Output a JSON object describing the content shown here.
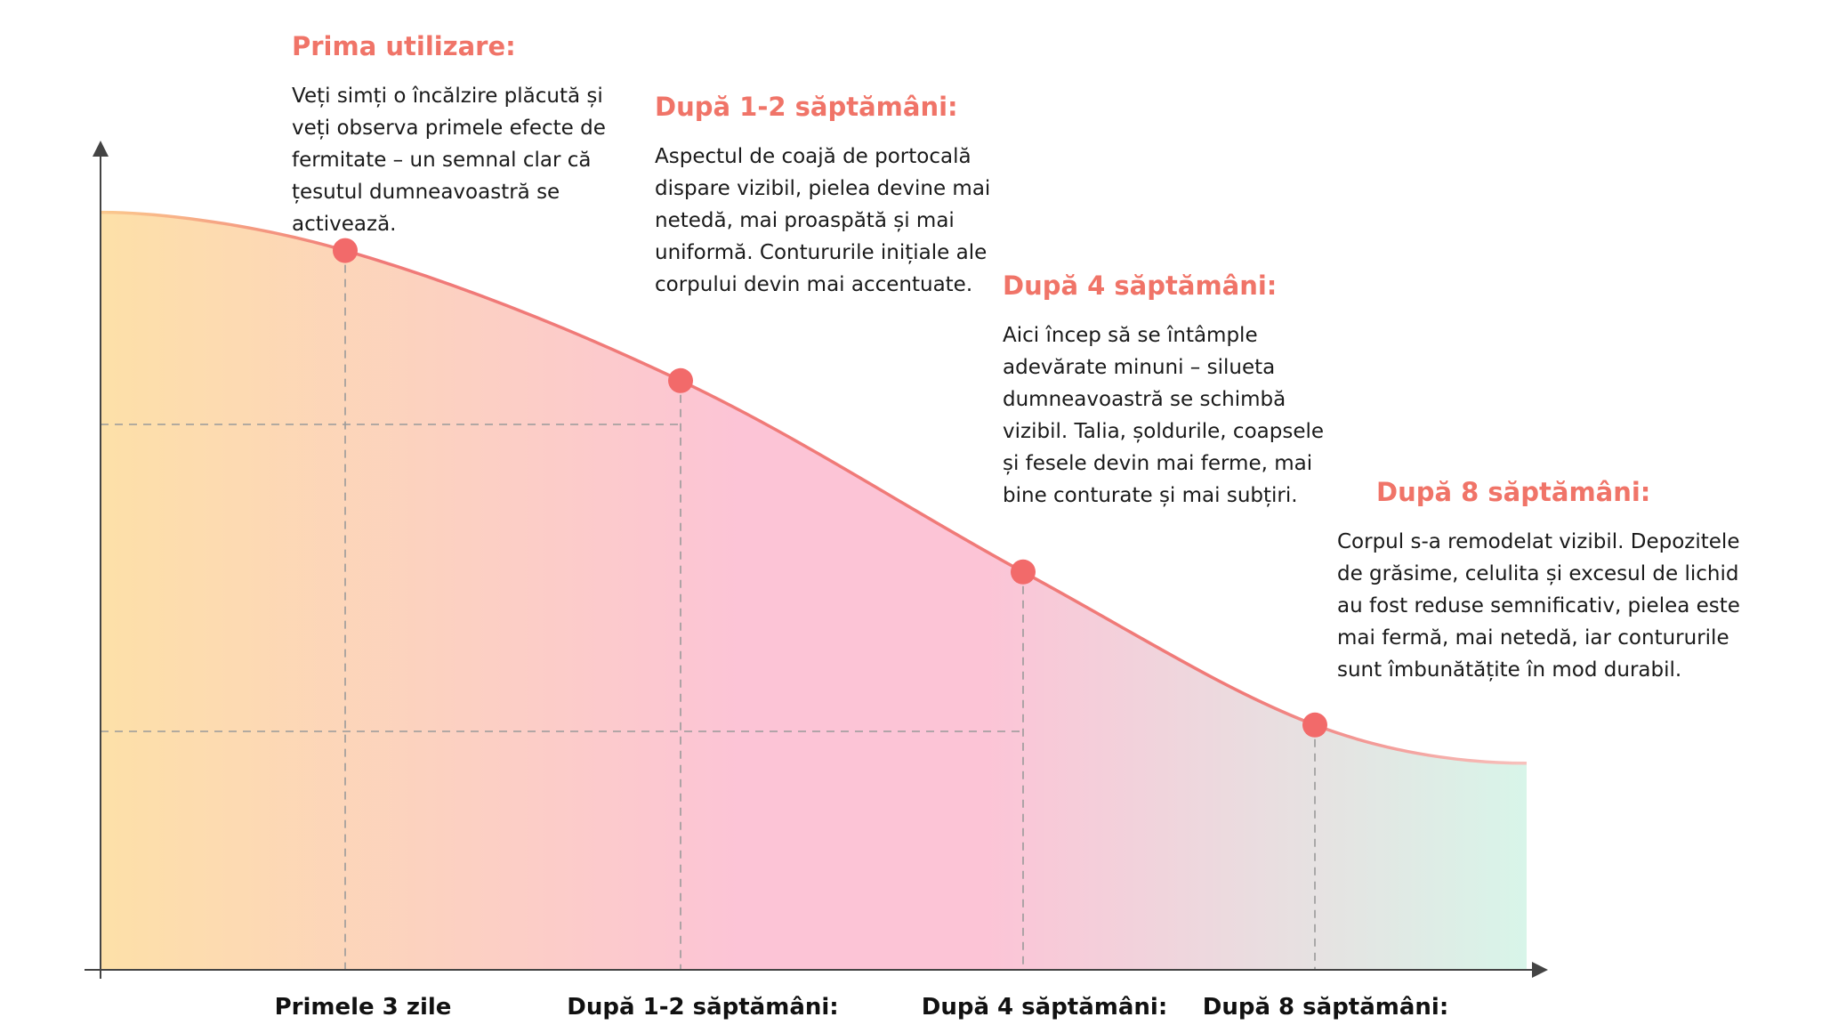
{
  "chart_data": {
    "type": "area",
    "title": "",
    "xlabel": "",
    "ylabel": "",
    "categories": [
      "Primele 3 zile",
      "După 1-2 săptămâni:",
      "După 4 săptămâni:",
      "După 8 săptămâni:"
    ],
    "series": [
      {
        "values": [
          0.94,
          0.77,
          0.52,
          0.32
        ]
      }
    ],
    "curve": {
      "start": 0.99,
      "end": 0.27
    },
    "ylim": [
      0,
      1
    ],
    "grid": false,
    "legend": "none",
    "colors": {
      "line": "#f07a78",
      "marker": "#f26a6a",
      "fill_start": "#fde0a8",
      "fill_mid": "#fcc4d6",
      "fill_end": "#d8f5e9",
      "axis": "#444444",
      "guide": "#9a9a9a"
    },
    "annotations": [
      {
        "title": "Prima utilizare:",
        "text": "Veți simți o încălzire plăcută și veți observa primele efecte de fermitate – un semnal clar că țesutul dumneavoastră se activează."
      },
      {
        "title": "După 1-2 săptămâni:",
        "text": "Aspectul de coajă de portocală dispare vizibil, pielea devine mai netedă, mai proaspătă și mai uniformă. Contururile inițiale ale corpului devin mai accentuate."
      },
      {
        "title": "După 4 săptămâni:",
        "text": "Aici încep să se întâmple adevărate minuni – silueta dumneavoastră se schimbă vizibil. Talia, șoldurile, coapsele și fesele devin mai ferme, mai bine conturate și mai subțiri."
      },
      {
        "title": "După 8 săptămâni:",
        "text": "Corpul s-a remodelat vizibil. Depozitele de grăsime, celulita și excesul de lichid au fost reduse semnificativ, pielea este mai fermă, mai netedă, iar contururile sunt îmbunătățite în mod durabil."
      }
    ]
  }
}
